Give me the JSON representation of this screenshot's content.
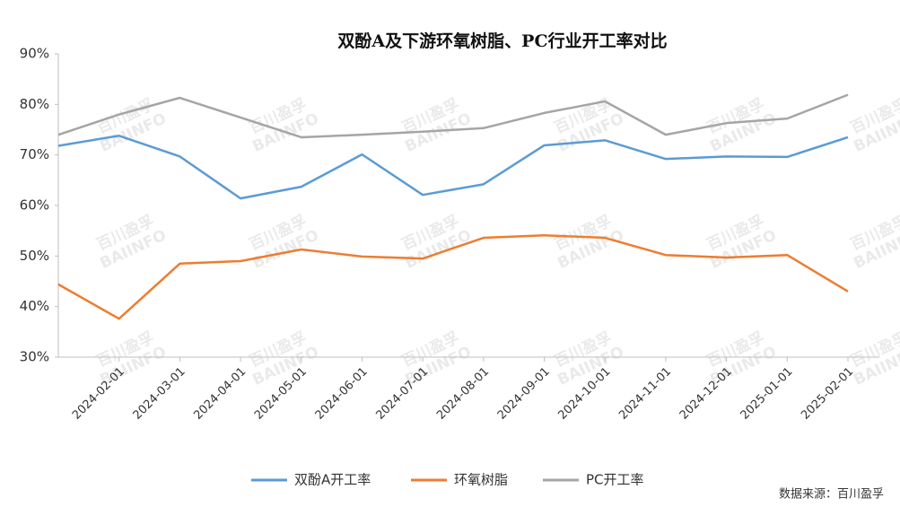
{
  "chart_data": {
    "type": "line",
    "title": "双酚A及下游环氧树脂、PC行业开工率对比",
    "source": "数据来源：百川盈孚",
    "watermark": [
      "百川盈孚",
      "BAIINFO"
    ],
    "categories": [
      null,
      "2024-02-01",
      "2024-03-01",
      "2024-04-01",
      "2024-05-01",
      "2024-06-01",
      "2024-07-01",
      "2024-08-01",
      "2024-09-01",
      "2024-10-01",
      "2024-11-01",
      "2024-12-01",
      "2025-01-01",
      "2025-02-01"
    ],
    "series": [
      {
        "name": "双酚A开工率",
        "color": "#5b9bd5",
        "values": [
          71.8,
          73.8,
          69.7,
          61.4,
          63.7,
          70.1,
          62.1,
          64.2,
          71.9,
          72.9,
          69.2,
          69.7,
          69.6,
          73.5
        ]
      },
      {
        "name": "环氧树脂",
        "color": "#ed7d31",
        "values": [
          44.4,
          37.6,
          48.5,
          49.0,
          51.3,
          49.9,
          49.5,
          53.6,
          54.1,
          53.6,
          50.2,
          49.7,
          50.2,
          43.0
        ]
      },
      {
        "name": "PC开工率",
        "color": "#a5a5a5",
        "values": [
          74.0,
          78.0,
          81.3,
          77.4,
          73.5,
          74.0,
          74.6,
          75.3,
          78.3,
          80.6,
          74.0,
          76.3,
          77.2,
          81.9
        ]
      }
    ],
    "ylim": [
      30,
      90
    ],
    "yticks": [
      {
        "value": 30,
        "label": "30%"
      },
      {
        "value": 40,
        "label": "40%"
      },
      {
        "value": 50,
        "label": "50%"
      },
      {
        "value": 60,
        "label": "60%"
      },
      {
        "value": 70,
        "label": "70%"
      },
      {
        "value": 80,
        "label": "80%"
      },
      {
        "value": 90,
        "label": "90%"
      }
    ],
    "grid": false,
    "legend": "bottom"
  }
}
